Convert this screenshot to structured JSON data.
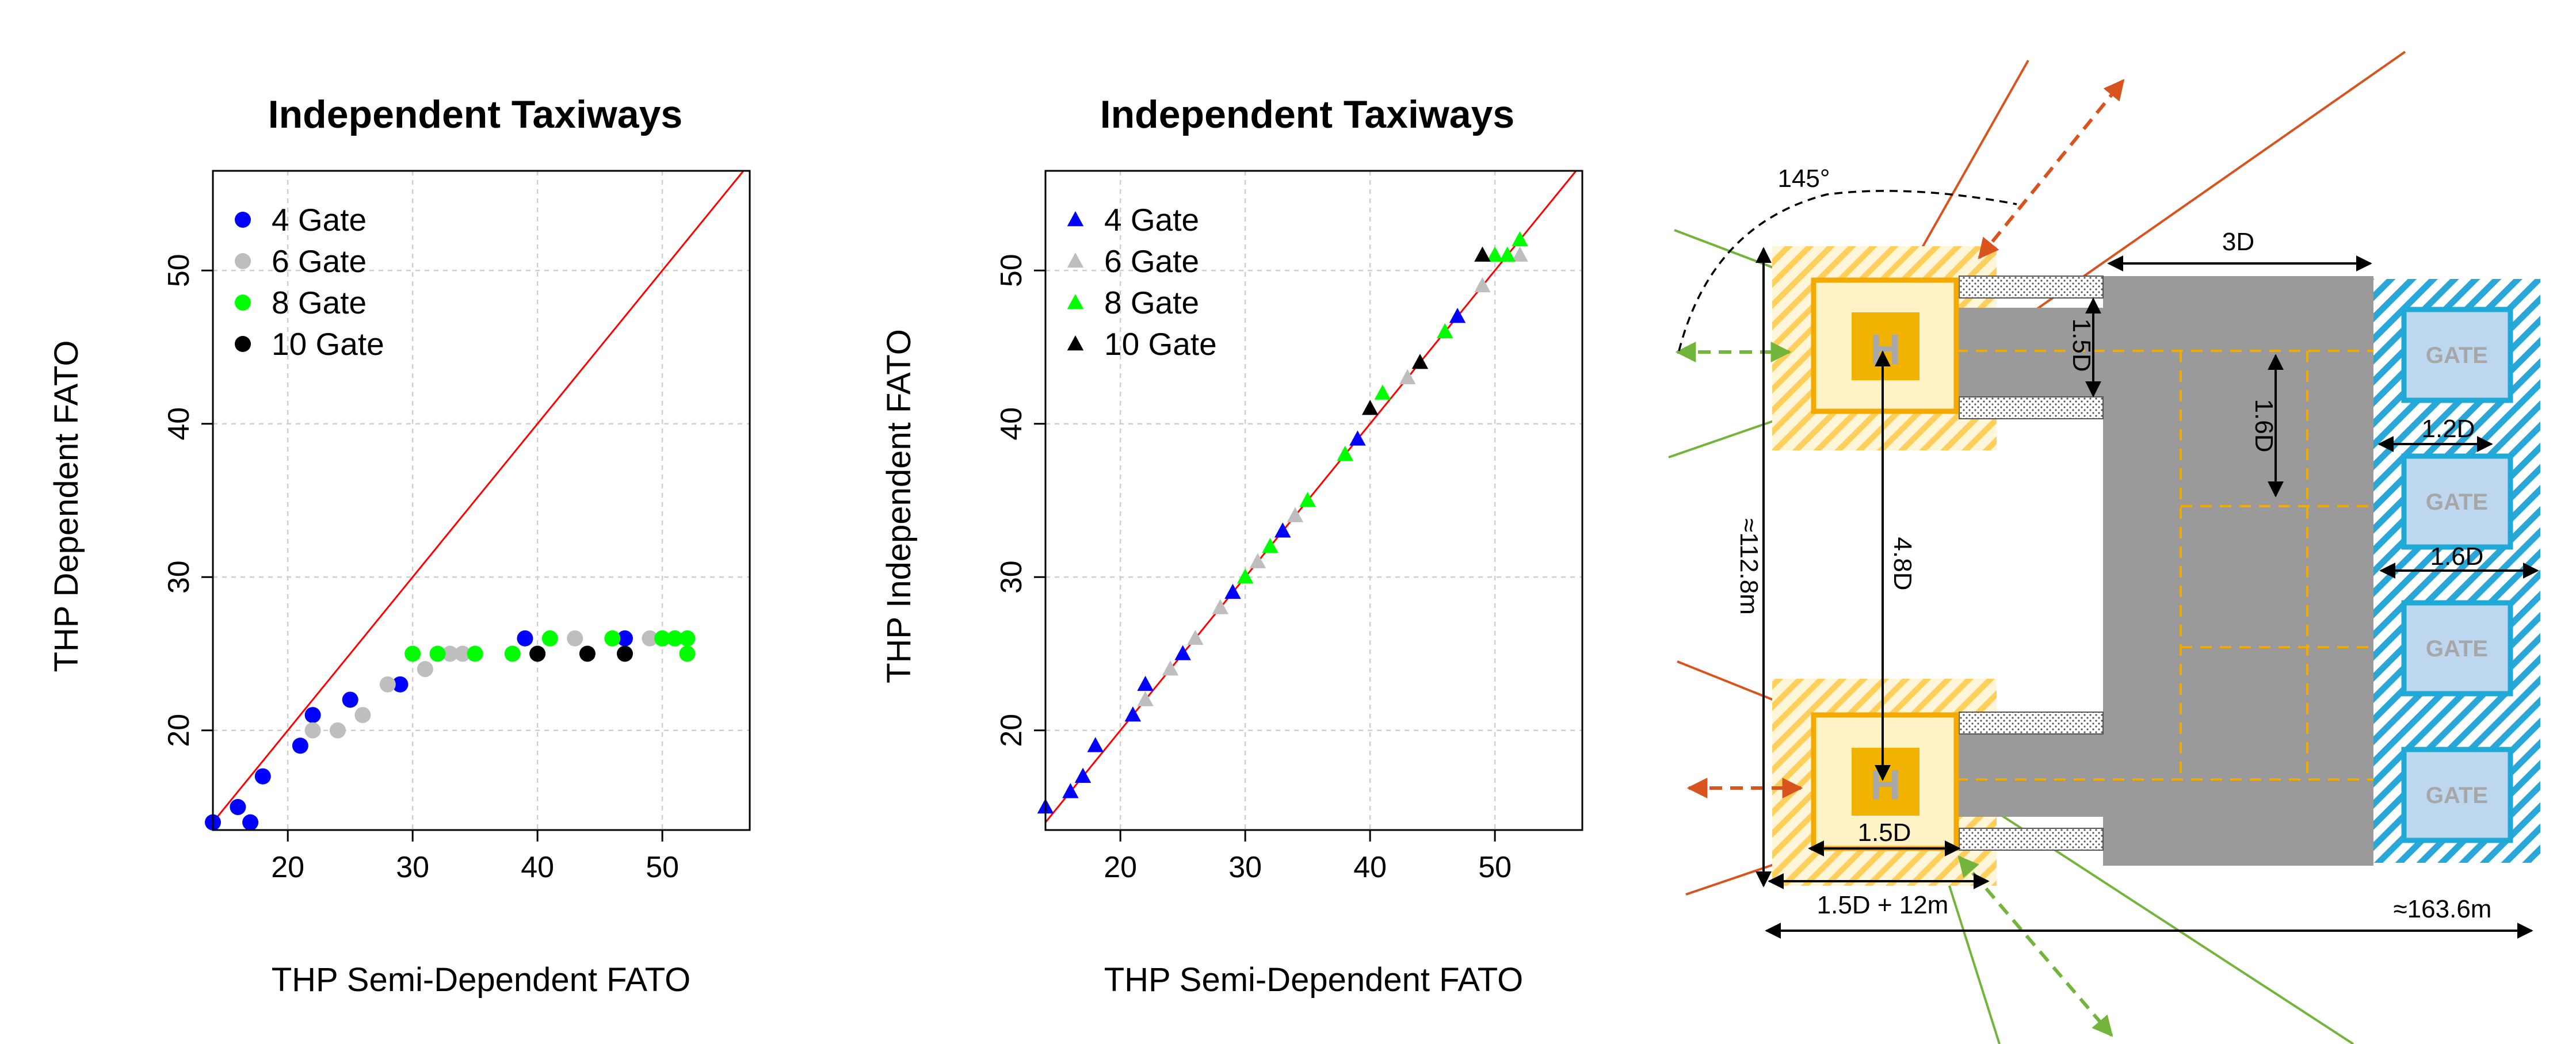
{
  "chart_data": [
    {
      "type": "scatter",
      "title": "Independent Taxiways",
      "xlabel": "THP Semi-Dependent FATO",
      "ylabel": "THP Dependent FATO",
      "xlim": [
        14,
        57
      ],
      "ylim": [
        13.5,
        56.5
      ],
      "xticks": [
        20,
        30,
        40,
        50
      ],
      "yticks": [
        20,
        30,
        40,
        50
      ],
      "grid": true,
      "legend_position": "top-left",
      "marker": "circle",
      "reference_line": "y = x",
      "series": [
        {
          "name": "4 Gate",
          "color": "#0000ff",
          "points": [
            [
              14,
              14
            ],
            [
              16,
              15
            ],
            [
              17,
              14
            ],
            [
              18,
              17
            ],
            [
              21,
              19
            ],
            [
              22,
              21
            ],
            [
              25,
              22
            ],
            [
              29,
              23
            ],
            [
              39,
              26
            ],
            [
              47,
              26
            ]
          ]
        },
        {
          "name": "6 Gate",
          "color": "#bebebe",
          "points": [
            [
              22,
              20
            ],
            [
              24,
              20
            ],
            [
              26,
              21
            ],
            [
              28,
              23
            ],
            [
              31,
              24
            ],
            [
              33,
              25
            ],
            [
              34,
              25
            ],
            [
              38,
              25
            ],
            [
              43,
              26
            ],
            [
              49,
              26
            ]
          ]
        },
        {
          "name": "8 Gate",
          "color": "#00ff00",
          "points": [
            [
              30,
              25
            ],
            [
              32,
              25
            ],
            [
              35,
              25
            ],
            [
              38,
              25
            ],
            [
              41,
              26
            ],
            [
              46,
              26
            ],
            [
              50,
              26
            ],
            [
              51,
              26
            ],
            [
              52,
              26
            ],
            [
              52,
              25
            ]
          ]
        },
        {
          "name": "10 Gate",
          "color": "#000000",
          "points": [
            [
              40,
              25
            ],
            [
              44,
              25
            ],
            [
              47,
              25
            ]
          ]
        }
      ]
    },
    {
      "type": "scatter",
      "title": "Independent Taxiways",
      "xlabel": "THP Semi-Dependent FATO",
      "ylabel": "THP Independent FATO",
      "xlim": [
        14,
        57
      ],
      "ylim": [
        13.5,
        56.5
      ],
      "xticks": [
        20,
        30,
        40,
        50
      ],
      "yticks": [
        20,
        30,
        40,
        50
      ],
      "grid": true,
      "legend_position": "top-left",
      "marker": "triangle",
      "reference_line": "y = x",
      "series": [
        {
          "name": "4 Gate",
          "color": "#0000ff",
          "points": [
            [
              14,
              15
            ],
            [
              16,
              16
            ],
            [
              17,
              17
            ],
            [
              18,
              19
            ],
            [
              21,
              21
            ],
            [
              22,
              23
            ],
            [
              25,
              25
            ],
            [
              29,
              29
            ],
            [
              33,
              33
            ],
            [
              39,
              39
            ],
            [
              47,
              47
            ]
          ]
        },
        {
          "name": "6 Gate",
          "color": "#bebebe",
          "points": [
            [
              22,
              22
            ],
            [
              24,
              24
            ],
            [
              26,
              26
            ],
            [
              28,
              28
            ],
            [
              31,
              31
            ],
            [
              34,
              34
            ],
            [
              38,
              38
            ],
            [
              43,
              43
            ],
            [
              49,
              49
            ],
            [
              50,
              51
            ],
            [
              52,
              51
            ]
          ]
        },
        {
          "name": "8 Gate",
          "color": "#00ff00",
          "points": [
            [
              30,
              30
            ],
            [
              32,
              32
            ],
            [
              35,
              35
            ],
            [
              38,
              38
            ],
            [
              41,
              42
            ],
            [
              46,
              46
            ],
            [
              50,
              51
            ],
            [
              51,
              51
            ],
            [
              52,
              52
            ]
          ]
        },
        {
          "name": "10 Gate",
          "color": "#000000",
          "points": [
            [
              40,
              41
            ],
            [
              44,
              44
            ],
            [
              49,
              51
            ]
          ]
        }
      ]
    }
  ],
  "diagram": {
    "labels": {
      "angle": "145°",
      "three_d": "3D",
      "one_five_d_right": "1.5D",
      "one_six_d_taxi": "1.6D",
      "one_two_d": "1.2D",
      "one_six_d_gates": "1.6D",
      "four_eight_d": "4.8D",
      "height": "≈112.8m",
      "one_five_d_bottom": "1.5D",
      "pad_plus": "1.5D + 12m",
      "width": "≈163.6m"
    },
    "pad_letter": "H",
    "gate_label": "GATE",
    "gate_count": 4,
    "colors": {
      "pad_outer": "#ffe699",
      "pad_border": "#f2a900",
      "pad_core": "#f2b200",
      "taxiway": "#9a9a9a",
      "taxi_markings": "#f2a900",
      "gate_fill": "#bdd7ee",
      "gate_border": "#1fa9d6",
      "hatch_orange": "#ffc94d",
      "hatch_blue": "#2aa7d9",
      "approach_orange": "#d9531e",
      "approach_green": "#73b43b"
    }
  }
}
